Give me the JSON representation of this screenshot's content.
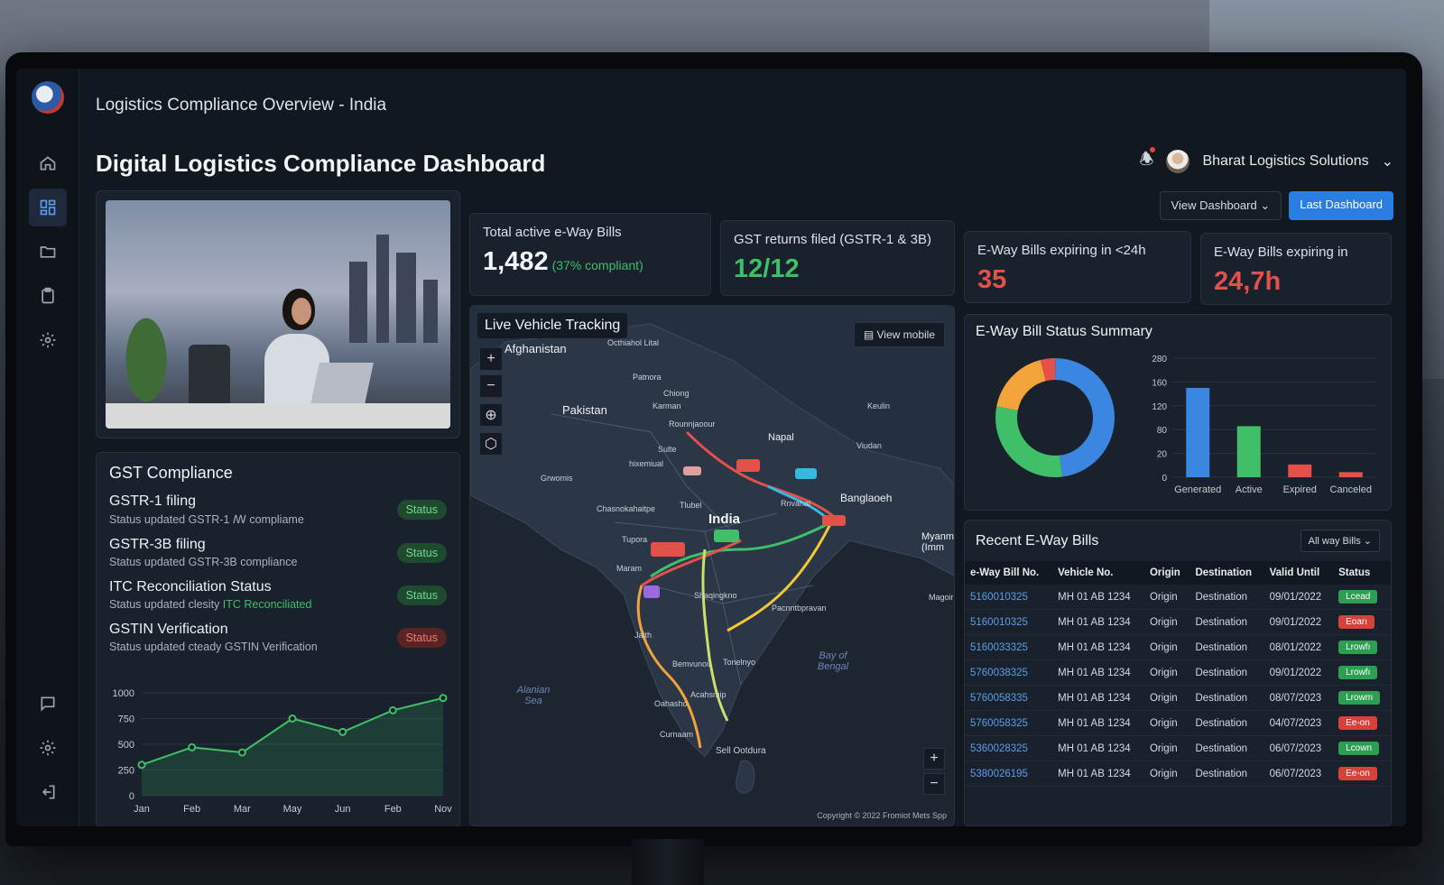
{
  "window_title": "Logistics Compliance Overview - India",
  "page_title": "Digital Logistics Compliance Dashboard",
  "user": {
    "name": "Bharat Logistics Solutions"
  },
  "buttons": {
    "view_dashboard": "View Dashboard",
    "last_dashboard": "Last Dashboard"
  },
  "sidebar": {
    "items": [
      {
        "icon": "home-icon"
      },
      {
        "icon": "dashboard-icon",
        "active": true
      },
      {
        "icon": "folder-icon"
      },
      {
        "icon": "clipboard-icon"
      },
      {
        "icon": "gear-icon"
      }
    ],
    "bottom": [
      {
        "icon": "chat-icon"
      },
      {
        "icon": "gear-icon"
      },
      {
        "icon": "logout-icon"
      }
    ]
  },
  "kpis": {
    "total_bills": {
      "label": "Total active e-Way Bills",
      "value": "1,482",
      "sub": "(37% compliant)"
    },
    "gst_returns": {
      "label": "GST returns filed (GSTR-1 & 3B)",
      "value": "12/12"
    },
    "expiring_24h": {
      "label": "E-Way Bills expiring in <24h",
      "value": "35"
    },
    "expiring_in": {
      "label": "E-Way Bills expiring in",
      "value": "24,7h"
    }
  },
  "gst": {
    "title": "GST Compliance",
    "items": [
      {
        "name": "GSTR-1 filing",
        "desc": "Status updated GSTR-1 ꟿ compliame",
        "desc_hl": "",
        "status": "Status",
        "state": "ok"
      },
      {
        "name": "GSTR-3B filing",
        "desc": "Status updated GSTR-3B compliance",
        "desc_hl": "",
        "status": "Status",
        "state": "ok"
      },
      {
        "name": "ITC Reconciliation Status",
        "desc": "Status updated clesity ",
        "desc_hl": "ITC Reconciliated",
        "status": "Status",
        "state": "ok"
      },
      {
        "name": "GSTIN Verification",
        "desc": "Status updated cteady GSTIN Verification",
        "desc_hl": "",
        "status": "Status",
        "state": "bad"
      }
    ]
  },
  "line_chart": {
    "type": "line",
    "categories": [
      "Jan",
      "Feb",
      "Mar",
      "May",
      "Jun",
      "Feb",
      "Nov"
    ],
    "values": [
      300,
      470,
      420,
      750,
      620,
      830,
      950
    ],
    "yticks": [
      0,
      250,
      500,
      750,
      1000
    ],
    "ylim": [
      0,
      1000
    ],
    "color": "#3fbf68"
  },
  "map": {
    "title": "Live Vehicle Tracking",
    "view_mobile": "View mobile",
    "copyright": "Copyright © 2022 Fromiot Mets Spp",
    "labels": {
      "afghanistan": "Afghanistan",
      "pakistan": "Pakistan",
      "india": "India",
      "napal": "Napal",
      "banglaoeh": "Banglaoeh",
      "myanmar": "Myanm (Imm",
      "alanian_sea": "Alanian Sea",
      "bay_of_bengal": "Bay of Bengal",
      "sell_ootdura": "Sell Ootdura",
      "pahu": "Octhiahol Lital",
      "patnora": "Patnora",
      "chiong": "Chiong",
      "karman": "Karman",
      "rajapur": "Rounnjaoour",
      "suite": "Sulte",
      "hixemiual": "hixemiual",
      "grwomis": "Grwomis",
      "chasnokahalipe": "Chasnokahaitpe",
      "tlubel": "Tlubel",
      "tupora": "Tupora",
      "maram": "Maram",
      "shajingiko": "Shaqingkno",
      "pacnntbpravan": "Pacnntbpravan",
      "jaith": "Jaith",
      "bemvunoil": "Bemvunoil",
      "tonelnyo": "Tonelnyo",
      "acahsmip": "Acahsmip",
      "oahasho": "Oahasho",
      "curnaam": "Curnaam",
      "rnvahal": "Rnvahal",
      "keulin": "Keulin",
      "viudan": "Viudan",
      "magoir": "Magoir"
    }
  },
  "summary": {
    "title": "E-Way Bill Status Summary",
    "donut": [
      {
        "value": 48,
        "color": "#3b86e0"
      },
      {
        "value": 30,
        "color": "#3fbf68"
      },
      {
        "value": 18,
        "color": "#f2a33a"
      },
      {
        "value": 4,
        "color": "#e4504a"
      }
    ],
    "chart_data": {
      "type": "bar",
      "categories": [
        "Generated",
        "Active",
        "Expired",
        "Canceled"
      ],
      "values": [
        210,
        120,
        30,
        12
      ],
      "colors": [
        "#3b86e0",
        "#3fbf68",
        "#e4504a",
        "#e4504a"
      ],
      "yticks": [
        "0",
        "20",
        "80",
        "120",
        "160",
        "280"
      ],
      "ylim": [
        0,
        280
      ]
    }
  },
  "table": {
    "title": "Recent E-Way Bills",
    "filter": "All way Bills",
    "columns": [
      "e-Way Bill No.",
      "Vehicle No.",
      "Origin",
      "Destination",
      "Valid Until",
      "Status"
    ],
    "rows": [
      {
        "bill": "5160010325",
        "vehicle": "MH 01 AB 1234",
        "origin": "Origin",
        "destination": "Destination",
        "valid": "09/01/2022",
        "status": "Lcead",
        "state": "green"
      },
      {
        "bill": "5160010325",
        "vehicle": "MH 01 AB 1234",
        "origin": "Origin",
        "destination": "Destination",
        "valid": "09/01/2022",
        "status": "Eoarı",
        "state": "red"
      },
      {
        "bill": "5160033325",
        "vehicle": "MH 01 AB 1234",
        "origin": "Origin",
        "destination": "Destination",
        "valid": "08/01/2022",
        "status": "Lrowfı",
        "state": "green"
      },
      {
        "bill": "5760038325",
        "vehicle": "MH 01 AB 1234",
        "origin": "Origin",
        "destination": "Destination",
        "valid": "09/01/2022",
        "status": "Lrowfı",
        "state": "green"
      },
      {
        "bill": "5760058335",
        "vehicle": "MH 01 AB 1234",
        "origin": "Origin",
        "destination": "Destination",
        "valid": "08/07/2023",
        "status": "Lrowm",
        "state": "green"
      },
      {
        "bill": "5760058325",
        "vehicle": "MH 01 AB 1234",
        "origin": "Origin",
        "destination": "Destination",
        "valid": "04/07/2023",
        "status": "Ee-on",
        "state": "red"
      },
      {
        "bill": "5360028325",
        "vehicle": "MH 01 AB 1234",
        "origin": "Origin",
        "destination": "Destination",
        "valid": "06/07/2023",
        "status": "Lcown",
        "state": "green"
      },
      {
        "bill": "5380026195",
        "vehicle": "MH 01 AB 1234",
        "origin": "Origin",
        "destination": "Destination",
        "valid": "06/07/2023",
        "status": "Ee-on",
        "state": "red"
      }
    ]
  }
}
